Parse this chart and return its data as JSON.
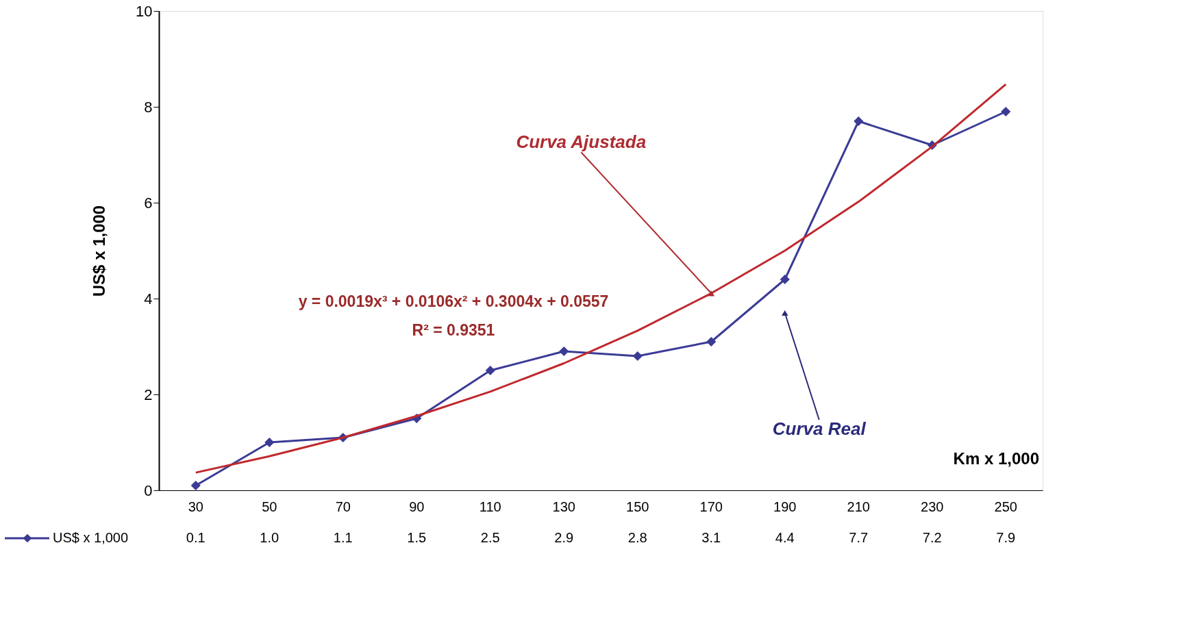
{
  "chart_data": {
    "type": "line",
    "categories": [
      "30",
      "50",
      "70",
      "90",
      "110",
      "130",
      "150",
      "170",
      "190",
      "210",
      "230",
      "250"
    ],
    "ylabel": "US$ x 1,000",
    "xlabel": "Km x 1,000",
    "ylim": [
      0,
      10
    ],
    "yticks": [
      0,
      2,
      4,
      6,
      8,
      10
    ],
    "grid": false,
    "legend": "bottom left",
    "series": [
      {
        "name": "US$ x 1,000",
        "color": "#3b3b96",
        "marker": "diamond",
        "values": [
          0.1,
          1.0,
          1.1,
          1.5,
          2.5,
          2.9,
          2.8,
          3.1,
          4.4,
          7.7,
          7.2,
          7.9
        ],
        "value_labels": [
          "0.1",
          "1.0",
          "1.1",
          "1.5",
          "2.5",
          "2.9",
          "2.8",
          "3.1",
          "4.4",
          "7.7",
          "7.2",
          "7.9"
        ]
      },
      {
        "type": "line",
        "color": "#c0282d",
        "marker": "none",
        "x": [
          "30",
          "50",
          "70",
          "90",
          "110",
          "130",
          "150",
          "170",
          "190",
          "210",
          "230",
          "250"
        ],
        "values": [
          0.37,
          0.71,
          1.1,
          1.55,
          2.06,
          2.65,
          3.33,
          4.11,
          5.0,
          6.02,
          7.17,
          8.47
        ]
      }
    ],
    "annotations": [
      {
        "text": "Curva Ajustada",
        "x": "170",
        "y": 4.11
      },
      {
        "text": "Curva Real",
        "x": "190",
        "y": 3.7
      },
      "y = 0.0019x³ + 0.0106x² + 0.3004x + 0.0557",
      "R² = 0.9351"
    ]
  }
}
